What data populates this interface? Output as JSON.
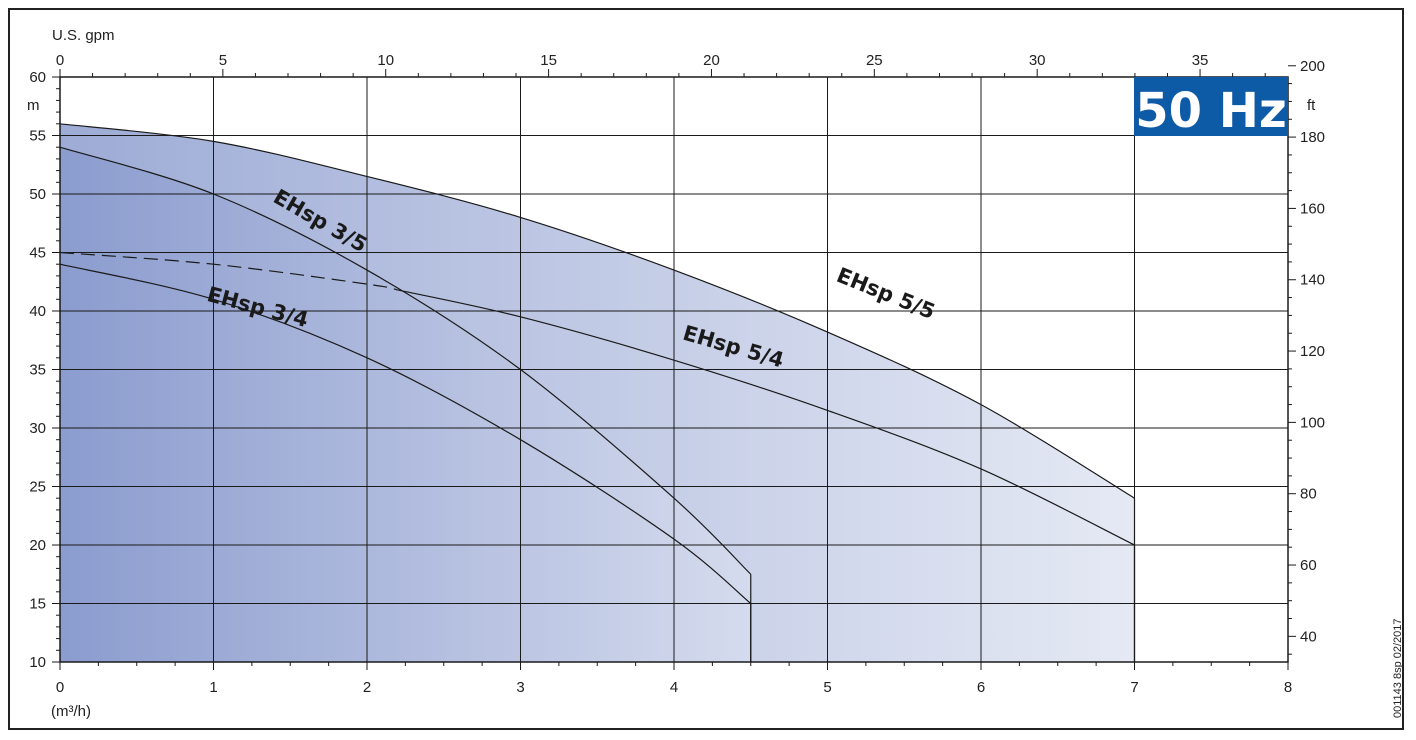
{
  "chart_data": {
    "type": "line",
    "badge": {
      "text": "50 Hz",
      "color": "#0d5aa7"
    },
    "axes": {
      "x_bottom": {
        "label": "(m³/h)",
        "range": [
          0,
          8
        ],
        "ticks": [
          0,
          1,
          2,
          3,
          4,
          5,
          6,
          7,
          8
        ]
      },
      "x_top": {
        "label": "U.S. gpm",
        "range": [
          0,
          37.7
        ],
        "ticks": [
          0,
          5,
          10,
          15,
          20,
          25,
          30,
          35
        ]
      },
      "y_left": {
        "label": "m",
        "range": [
          10,
          60
        ],
        "ticks": [
          10,
          15,
          20,
          25,
          30,
          35,
          40,
          45,
          50,
          55,
          60
        ]
      },
      "y_right": {
        "label": "ft",
        "ticks": [
          40,
          60,
          80,
          100,
          120,
          140,
          160,
          180,
          200
        ]
      }
    },
    "grid": true,
    "series": [
      {
        "name": "EHsp 5/5",
        "x": [
          0,
          1,
          2,
          3,
          4,
          5,
          6,
          7
        ],
        "y": [
          56,
          54.5,
          51.5,
          48,
          43.5,
          38.2,
          32,
          24
        ],
        "end_x": 7
      },
      {
        "name": "EHsp 3/5",
        "x": [
          0,
          1,
          2,
          3,
          4,
          4.5
        ],
        "y": [
          54,
          50,
          43.5,
          35,
          24,
          17.5
        ],
        "end_x": 4.5
      },
      {
        "name": "EHsp 5/4",
        "x": [
          0,
          1,
          2,
          2.2,
          3,
          4,
          5,
          6,
          7
        ],
        "y": [
          45,
          44,
          42.3,
          41.8,
          39.5,
          35.8,
          31.5,
          26.5,
          20
        ],
        "dashed_until_x": 2.2,
        "end_x": 7
      },
      {
        "name": "EHsp 3/4",
        "x": [
          0,
          1,
          2,
          3,
          4,
          4.5
        ],
        "y": [
          44,
          41,
          36,
          29,
          20.5,
          15
        ],
        "end_x": 4.5
      }
    ],
    "footnote": "001143 8sp 02/2017"
  },
  "colors": {
    "fill_dark": "#7c8fc8",
    "fill_light": "#dde2f1",
    "line": "#1a1a1a",
    "grid": "#1a1a1a"
  },
  "labels": {
    "top_axis_title": "U.S. gpm",
    "left_unit": "m",
    "right_unit": "ft",
    "bottom_unit": "(m³/h)"
  }
}
